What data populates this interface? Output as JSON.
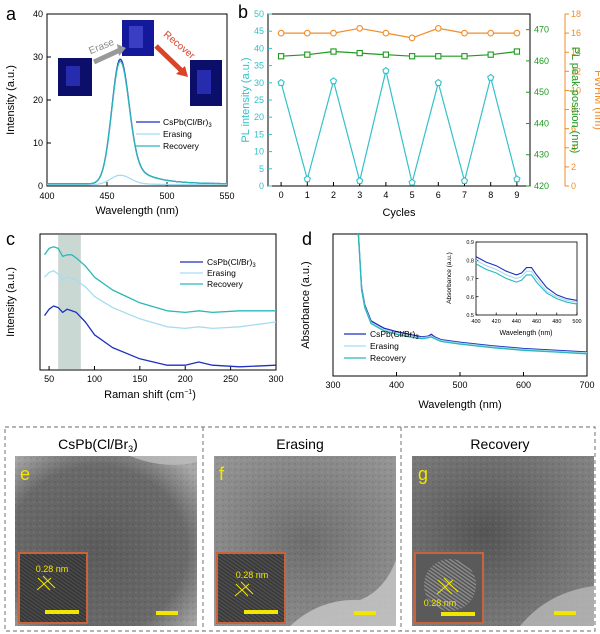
{
  "panels": {
    "a": {
      "letter": "a",
      "xlabel": "Wavelength (nm)",
      "ylabel": "Intensity (a.u.)",
      "erase_label": "Erase",
      "recover_label": "Recover",
      "legend": [
        "CsPb(Cl/Br)",
        "Erasing",
        "Recovery"
      ],
      "legend_sub": "3"
    },
    "b": {
      "letter": "b",
      "xlabel": "Cycles",
      "ylabel_left": "PL intensity (a.u.)",
      "ylabel_mid": "PL peak position (nm)",
      "ylabel_right": "FWHM (nm)"
    },
    "c": {
      "letter": "c",
      "xlabel": "Raman shift (cm",
      "xlabel_sup": "−1",
      "xlabel_end": ")",
      "ylabel": "Intensity (a.u.)",
      "legend": [
        "CsPb(Cl/Br)",
        "Erasing",
        "Recovery"
      ],
      "legend_sub": "3"
    },
    "d": {
      "letter": "d",
      "xlabel": "Wavelength (nm)",
      "ylabel": "Absorbance (a.u.)",
      "inset_xlabel": "Wavelength (nm)",
      "inset_ylabel": "Absorbance (a.u.)",
      "legend": [
        "CsPb(Cl/Br)",
        "Erasing",
        "Recovery"
      ],
      "legend_sub": "3"
    },
    "tem": [
      {
        "letter": "e",
        "title": "CsPb(Cl/Br",
        "title_sub": "3",
        "title_end": ")",
        "lattice": "0.28 nm"
      },
      {
        "letter": "f",
        "title": "Erasing",
        "title_sub": "",
        "title_end": "",
        "lattice": "0.28 nm"
      },
      {
        "letter": "g",
        "title": "Recovery",
        "title_sub": "",
        "title_end": "",
        "lattice": "0.28 nm"
      }
    ]
  },
  "colors": {
    "pristine": "#1f2fbf",
    "erasing": "#a6dcf2",
    "recovery": "#2ab8b8",
    "pl_intensity": "#33c1c9",
    "peak": "#1f9a1f",
    "fwhm": "#f28c28",
    "tem_frame": "#c8643c",
    "scalebar": "#f2e600",
    "letter_yellow": "#f2e600"
  },
  "chart_data": [
    {
      "panel": "a",
      "type": "line",
      "xlim": [
        400,
        550
      ],
      "ylim": [
        0,
        40
      ],
      "xticks": [
        400,
        450,
        500,
        550
      ],
      "yticks": [
        0,
        10,
        20,
        30,
        40
      ],
      "series": [
        {
          "name": "CsPb(Cl/Br)3",
          "color": "#1f2fbf",
          "peak_x": 461,
          "peak_y": 29.5,
          "width": 7,
          "baseline": 0.5
        },
        {
          "name": "Erasing",
          "color": "#a6dcf2",
          "peak_x": 461,
          "peak_y": 2.5,
          "width": 8,
          "baseline": 0.3
        },
        {
          "name": "Recovery",
          "color": "#2ab8b8",
          "peak_x": 461,
          "peak_y": 29.0,
          "width": 7,
          "baseline": 0.5
        }
      ]
    },
    {
      "panel": "b",
      "type": "line",
      "x": [
        0,
        1,
        2,
        3,
        4,
        5,
        6,
        7,
        8,
        9
      ],
      "xlim": [
        -0.5,
        9.5
      ],
      "left_axis": {
        "ylim": [
          0,
          50
        ],
        "yticks": [
          0,
          5,
          10,
          15,
          20,
          25,
          30,
          35,
          40,
          45,
          50
        ]
      },
      "mid_axis": {
        "ylim": [
          420,
          475
        ],
        "yticks": [
          420,
          430,
          440,
          450,
          460,
          470
        ]
      },
      "right_axis": {
        "ylim": [
          0,
          18
        ],
        "yticks": [
          0,
          2,
          4,
          6,
          8,
          10,
          12,
          14,
          16,
          18
        ]
      },
      "series": [
        {
          "name": "PL intensity",
          "axis": "left",
          "marker": "pentagon",
          "color": "#33c1c9",
          "values": [
            30.0,
            2.0,
            30.5,
            1.5,
            33.5,
            1.0,
            30.0,
            1.5,
            31.5,
            2.0
          ]
        },
        {
          "name": "PL peak position",
          "axis": "mid",
          "marker": "square",
          "color": "#1f9a1f",
          "values": [
            461.5,
            462.0,
            463.0,
            462.5,
            462.0,
            461.5,
            461.5,
            461.5,
            462.0,
            463.0
          ]
        },
        {
          "name": "FWHM",
          "axis": "right",
          "marker": "circle",
          "color": "#f28c28",
          "values": [
            16.0,
            16.0,
            16.0,
            16.5,
            16.0,
            15.5,
            16.5,
            16.0,
            16.0,
            16.0
          ]
        }
      ]
    },
    {
      "panel": "c",
      "type": "line",
      "xlim": [
        40,
        300
      ],
      "xticks": [
        50,
        100,
        150,
        200,
        250,
        300
      ],
      "highlight_band": [
        60,
        85
      ],
      "series": [
        {
          "name": "CsPb(Cl/Br)3",
          "color": "#1f2fbf",
          "x": [
            45,
            50,
            55,
            60,
            65,
            70,
            75,
            80,
            90,
            100,
            120,
            150,
            180,
            200,
            215,
            230,
            260,
            300
          ],
          "values": [
            0.34,
            0.38,
            0.4,
            0.39,
            0.36,
            0.38,
            0.37,
            0.36,
            0.3,
            0.22,
            0.14,
            0.07,
            0.03,
            0.03,
            0.05,
            0.03,
            0.02,
            0.03
          ]
        },
        {
          "name": "Erasing",
          "color": "#a6dcf2",
          "x": [
            45,
            50,
            55,
            60,
            65,
            70,
            75,
            80,
            90,
            100,
            120,
            150,
            180,
            200,
            215,
            230,
            260,
            300
          ],
          "values": [
            0.58,
            0.61,
            0.62,
            0.6,
            0.56,
            0.58,
            0.57,
            0.56,
            0.52,
            0.46,
            0.39,
            0.32,
            0.27,
            0.26,
            0.27,
            0.26,
            0.27,
            0.3
          ]
        },
        {
          "name": "Recovery",
          "color": "#2ab8b8",
          "x": [
            45,
            50,
            55,
            60,
            65,
            70,
            75,
            80,
            90,
            100,
            120,
            150,
            180,
            200,
            215,
            230,
            260,
            300
          ],
          "values": [
            0.72,
            0.76,
            0.77,
            0.76,
            0.71,
            0.72,
            0.72,
            0.7,
            0.65,
            0.58,
            0.5,
            0.42,
            0.37,
            0.36,
            0.37,
            0.36,
            0.37,
            0.37
          ]
        }
      ]
    },
    {
      "panel": "d",
      "type": "line",
      "xlim": [
        300,
        700
      ],
      "xticks": [
        300,
        400,
        500,
        600,
        700
      ],
      "series": [
        {
          "name": "CsPb(Cl/Br)3",
          "color": "#1f2fbf",
          "x": [
            340,
            345,
            350,
            360,
            380,
            400,
            420,
            440,
            450,
            455,
            460,
            470,
            500,
            550,
            600,
            650,
            700
          ],
          "values": [
            1.6,
            1.0,
            0.8,
            0.62,
            0.54,
            0.5,
            0.47,
            0.44,
            0.45,
            0.47,
            0.44,
            0.41,
            0.38,
            0.34,
            0.31,
            0.29,
            0.27
          ]
        },
        {
          "name": "Erasing",
          "color": "#a6dcf2",
          "x": [
            340,
            345,
            350,
            360,
            380,
            400,
            420,
            440,
            450,
            455,
            460,
            470,
            500,
            550,
            600,
            650,
            700
          ],
          "values": [
            1.6,
            0.98,
            0.78,
            0.6,
            0.52,
            0.48,
            0.45,
            0.43,
            0.44,
            0.45,
            0.43,
            0.4,
            0.37,
            0.33,
            0.3,
            0.28,
            0.26
          ]
        },
        {
          "name": "Recovery",
          "color": "#2ab8b8",
          "x": [
            340,
            345,
            350,
            360,
            380,
            400,
            420,
            440,
            450,
            455,
            460,
            470,
            500,
            550,
            600,
            650,
            700
          ],
          "values": [
            1.6,
            0.97,
            0.77,
            0.59,
            0.51,
            0.47,
            0.44,
            0.42,
            0.43,
            0.44,
            0.42,
            0.39,
            0.36,
            0.32,
            0.29,
            0.27,
            0.25
          ]
        }
      ],
      "inset": {
        "xlim": [
          400,
          500
        ],
        "ylim": [
          0.5,
          0.9
        ],
        "xticks": [
          400,
          420,
          440,
          460,
          480,
          500
        ],
        "yticks": [
          0.5,
          0.6,
          0.7,
          0.8,
          0.9
        ],
        "series": [
          {
            "name": "CsPb(Cl/Br)3",
            "color": "#1f2fbf",
            "x": [
              400,
              410,
              420,
              430,
              440,
              445,
              450,
              455,
              460,
              470,
              480,
              490,
              500
            ],
            "values": [
              0.82,
              0.79,
              0.77,
              0.74,
              0.72,
              0.73,
              0.76,
              0.76,
              0.72,
              0.65,
              0.61,
              0.59,
              0.58
            ]
          },
          {
            "name": "Erasing",
            "color": "#a6dcf2",
            "x": [
              400,
              410,
              420,
              430,
              440,
              445,
              450,
              455,
              460,
              470,
              480,
              490,
              500
            ],
            "values": [
              0.8,
              0.77,
              0.75,
              0.72,
              0.7,
              0.71,
              0.74,
              0.74,
              0.7,
              0.63,
              0.6,
              0.58,
              0.57
            ]
          },
          {
            "name": "Recovery",
            "color": "#2ab8b8",
            "x": [
              400,
              410,
              420,
              430,
              440,
              445,
              450,
              455,
              460,
              470,
              480,
              490,
              500
            ],
            "values": [
              0.78,
              0.75,
              0.73,
              0.7,
              0.68,
              0.69,
              0.72,
              0.72,
              0.68,
              0.62,
              0.59,
              0.57,
              0.56
            ]
          }
        ]
      }
    }
  ]
}
